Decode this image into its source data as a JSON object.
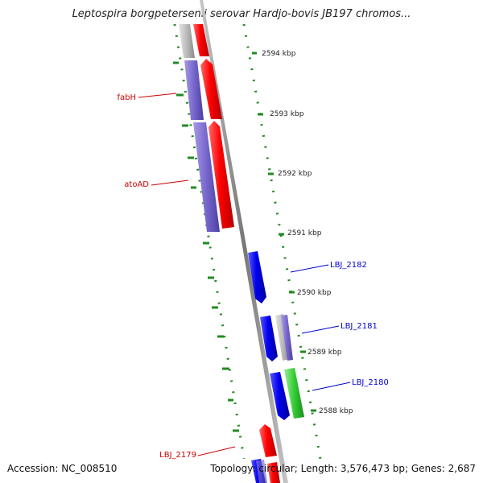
{
  "title": "Leptospira borgpetersenii serovar Hardjo-bovis JB197 chromos...",
  "footer": {
    "accession": "Accession: NC_008510",
    "stats": "Topology: circular; Length: 3,576,473 bp; Genes: 2,687"
  },
  "scale": {
    "unit": "kbp",
    "ticks": [
      "2594 kbp",
      "2593 kbp",
      "2592 kbp",
      "2591 kbp",
      "2590 kbp",
      "2589 kbp",
      "2588 kbp"
    ]
  },
  "genes": [
    {
      "label": "fabH",
      "label_color": "#cc0000"
    },
    {
      "label": "atoAD",
      "label_color": "#cc0000"
    },
    {
      "label": "LBJ_2182",
      "label_color": "#0000cc"
    },
    {
      "label": "LBJ_2181",
      "label_color": "#0000cc"
    },
    {
      "label": "LBJ_2180",
      "label_color": "#0000cc"
    },
    {
      "label": "LBJ_2179",
      "label_color": "#cc0000"
    }
  ],
  "colors": {
    "forward_strand": "#ff0000",
    "reverse_strand": "#0000ee",
    "cog_lavender": "#7766cc",
    "cog_green": "#33cc33",
    "cog_gray": "#bbbbbb",
    "gc_track": "#228b22",
    "backbone": "#888888"
  }
}
